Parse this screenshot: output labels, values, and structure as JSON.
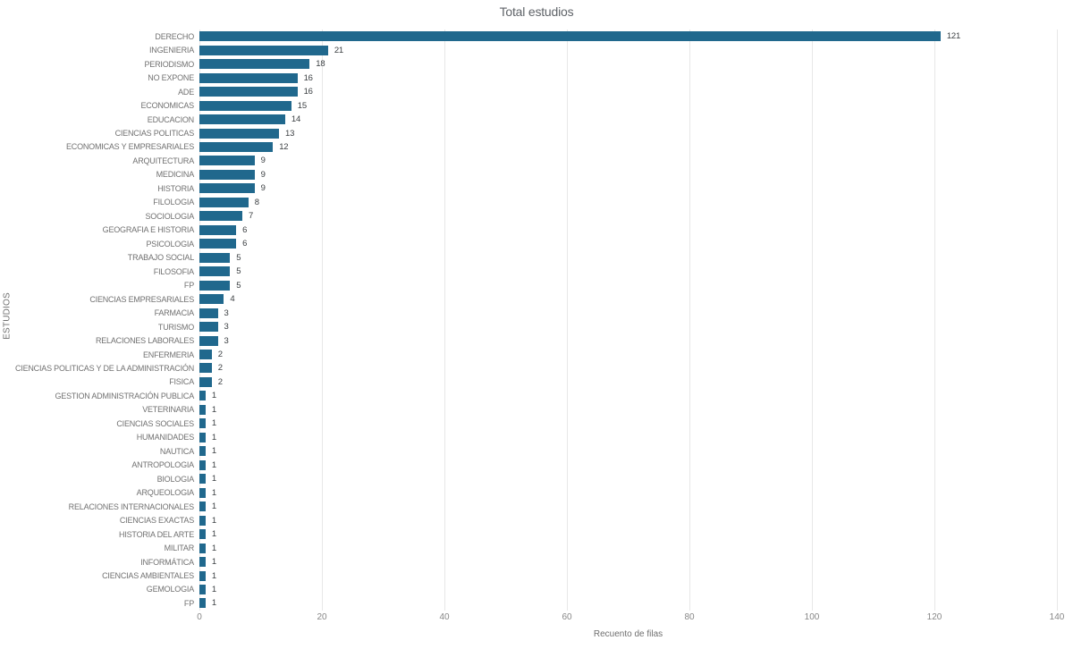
{
  "title": "Total estudios",
  "colors": {
    "bar": "#20688d",
    "grid": "#e7e7e7",
    "category_label": "#717171",
    "value_label": "#3c4043",
    "tick_label": "#878787",
    "title": "#5f6368",
    "background": "#ffffff"
  },
  "chart_data": {
    "type": "bar",
    "orientation": "horizontal",
    "title": "Total estudios",
    "xlabel": "Recuento de filas",
    "ylabel": "ESTUDIOS",
    "xlim": [
      0,
      140
    ],
    "x_ticks": [
      0,
      20,
      40,
      60,
      80,
      100,
      120,
      140
    ],
    "grid": true,
    "legend": false,
    "value_labels": true,
    "categories": [
      "DERECHO",
      "INGENIERIA",
      "PERIODISMO",
      "NO EXPONE",
      "ADE",
      "ECONOMICAS",
      "EDUCACION",
      "CIENCIAS POLITICAS",
      "ECONOMICAS Y EMPRESARIALES",
      "ARQUITECTURA",
      "MEDICINA",
      "HISTORIA",
      "FILOLOGIA",
      "SOCIOLOGIA",
      "GEOGRAFIA E HISTORIA",
      "PSICOLOGIA",
      "TRABAJO SOCIAL",
      "FILOSOFIA",
      "FP",
      "CIENCIAS EMPRESARIALES",
      "FARMACIA",
      "TURISMO",
      "RELACIONES LABORALES",
      "ENFERMERIA",
      "CIENCIAS POLITICAS Y DE LA ADMINISTRACIÓN",
      "FISICA",
      "GESTION ADMINISTRACIÓN PUBLICA",
      "VETERINARIA",
      "CIENCIAS SOCIALES",
      "HUMANIDADES",
      "NAUTICA",
      "ANTROPOLOGIA",
      "BIOLOGIA",
      "ARQUEOLOGIA",
      "RELACIONES INTERNACIONALES",
      "CIENCIAS EXACTAS",
      "HISTORIA DEL ARTE",
      "MILITAR",
      "INFORMÁTICA",
      "CIENCIAS AMBIENTALES",
      "GEMOLOGIA",
      "FP"
    ],
    "values": [
      121,
      21,
      18,
      16,
      16,
      15,
      14,
      13,
      12,
      9,
      9,
      9,
      8,
      7,
      6,
      6,
      5,
      5,
      5,
      4,
      3,
      3,
      3,
      2,
      2,
      2,
      1,
      1,
      1,
      1,
      1,
      1,
      1,
      1,
      1,
      1,
      1,
      1,
      1,
      1,
      1,
      1
    ]
  }
}
